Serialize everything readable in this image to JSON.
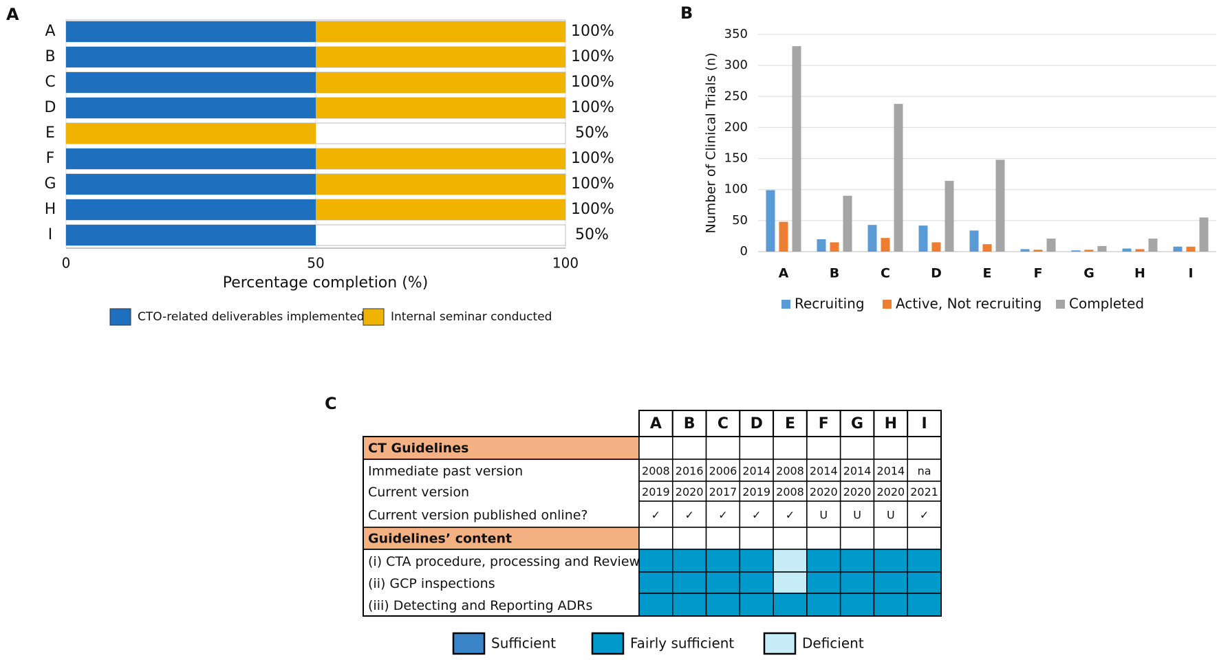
{
  "chart_data": [
    {
      "type": "hbar_stacked",
      "panel": "A",
      "categories": [
        "A",
        "B",
        "C",
        "D",
        "E",
        "F",
        "G",
        "H",
        "I"
      ],
      "series": [
        {
          "name": "CTO-related deliverables implemented",
          "color": "#1f6fbf",
          "values": [
            50,
            50,
            50,
            50,
            0,
            50,
            50,
            50,
            50
          ]
        },
        {
          "name": "Internal seminar conducted",
          "color": "#f0b400",
          "values": [
            50,
            50,
            50,
            50,
            50,
            50,
            50,
            50,
            0
          ]
        }
      ],
      "totals": [
        100,
        100,
        100,
        100,
        50,
        100,
        100,
        100,
        50
      ],
      "total_labels": [
        "100%",
        "100%",
        "100%",
        "100%",
        "50%",
        "100%",
        "100%",
        "100%",
        "50%"
      ],
      "xlim": [
        0,
        100
      ],
      "xticks": [
        0,
        50,
        100
      ],
      "xlabel": "Percentage completion  (%)",
      "grid": true
    },
    {
      "type": "bar",
      "panel": "B",
      "categories": [
        "A",
        "B",
        "C",
        "D",
        "E",
        "F",
        "G",
        "H",
        "I"
      ],
      "series": [
        {
          "name": "Recruiting",
          "color": "#5b9bd5",
          "values": [
            99,
            20,
            43,
            42,
            34,
            4,
            2,
            5,
            8
          ]
        },
        {
          "name": "Active, Not recruiting",
          "color": "#ed7d31",
          "values": [
            48,
            15,
            22,
            15,
            12,
            3,
            3,
            4,
            8
          ]
        },
        {
          "name": "Completed",
          "color": "#a5a5a5",
          "values": [
            331,
            90,
            238,
            114,
            148,
            21,
            9,
            21,
            55
          ]
        }
      ],
      "ylim": [
        0,
        350
      ],
      "yticks": [
        0,
        50,
        100,
        150,
        200,
        250,
        300,
        350
      ],
      "ylabel": "Number of Clinical Trials (n)",
      "grid": true
    }
  ],
  "table": {
    "panel": "C",
    "columns": [
      "A",
      "B",
      "C",
      "D",
      "E",
      "F",
      "G",
      "H",
      "I"
    ],
    "sections": [
      {
        "title": "CT Guidelines",
        "rows": [
          {
            "label": "Immediate past version",
            "cells": [
              "2008",
              "2016",
              "2006",
              "2014",
              "2008",
              "2014",
              "2014",
              "2014",
              "na"
            ]
          },
          {
            "label": "Current version",
            "cells": [
              "2019",
              "2020",
              "2017",
              "2019",
              "2008",
              "2020",
              "2020",
              "2020",
              "2021"
            ]
          },
          {
            "label": "Current version published online?",
            "cells": [
              "✓",
              "✓",
              "✓",
              "✓",
              "✓",
              "U",
              "U",
              "U",
              "✓"
            ]
          }
        ]
      },
      {
        "title": "Guidelines’ content",
        "rows": [
          {
            "label": "(i) CTA procedure, processing and Review",
            "status": [
              "Fairly sufficient",
              "Fairly sufficient",
              "Fairly sufficient",
              "Fairly sufficient",
              "Deficient",
              "Fairly sufficient",
              "Fairly sufficient",
              "Fairly sufficient",
              "Fairly sufficient"
            ]
          },
          {
            "label": "(ii) GCP inspections",
            "status": [
              "Fairly sufficient",
              "Fairly sufficient",
              "Fairly sufficient",
              "Fairly sufficient",
              "Deficient",
              "Fairly sufficient",
              "Fairly sufficient",
              "Fairly sufficient",
              "Fairly sufficient"
            ]
          },
          {
            "label": "(iii) Detecting and Reporting ADRs",
            "status": [
              "Fairly sufficient",
              "Fairly sufficient",
              "Fairly sufficient",
              "Fairly sufficient",
              "Fairly sufficient",
              "Fairly sufficient",
              "Fairly sufficient",
              "Fairly sufficient",
              "Fairly sufficient"
            ]
          }
        ]
      }
    ],
    "legend": [
      {
        "name": "Sufficient",
        "color": "#3a85c8"
      },
      {
        "name": "Fairly sufficient",
        "color": "#0099cc"
      },
      {
        "name": "Deficient",
        "color": "#c6ecf8"
      }
    ],
    "section_color": "#f4b183"
  }
}
